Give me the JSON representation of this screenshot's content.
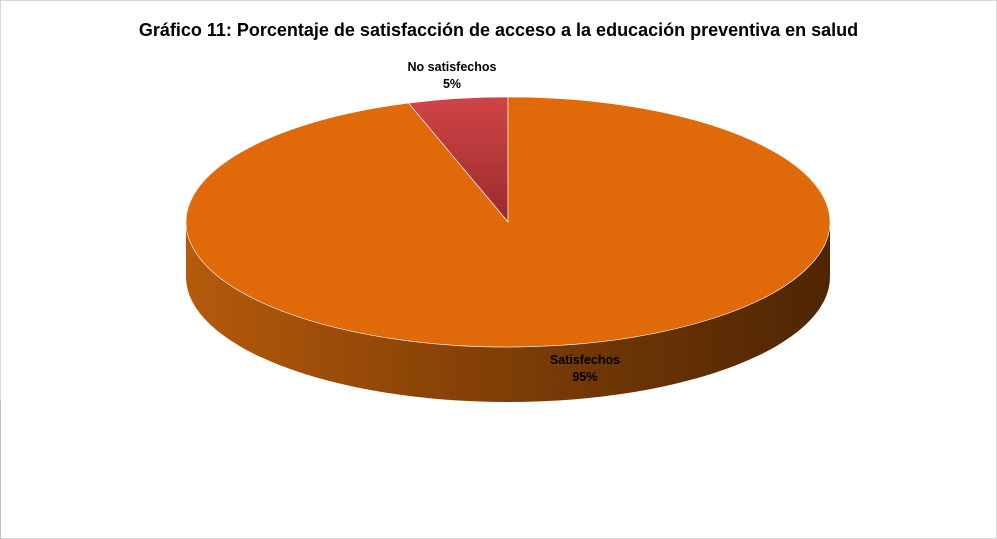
{
  "chart_data": {
    "type": "pie",
    "title": "Gráfico 11: Porcentaje de satisfacción de acceso a la educación preventiva en salud",
    "categories": [
      "No satisfechos",
      "Satisfechos"
    ],
    "values": [
      5,
      95
    ],
    "labels": [
      "5%",
      "95%"
    ],
    "colors": [
      "#c0393b",
      "#e06a0a"
    ],
    "style": "3d-pie"
  }
}
